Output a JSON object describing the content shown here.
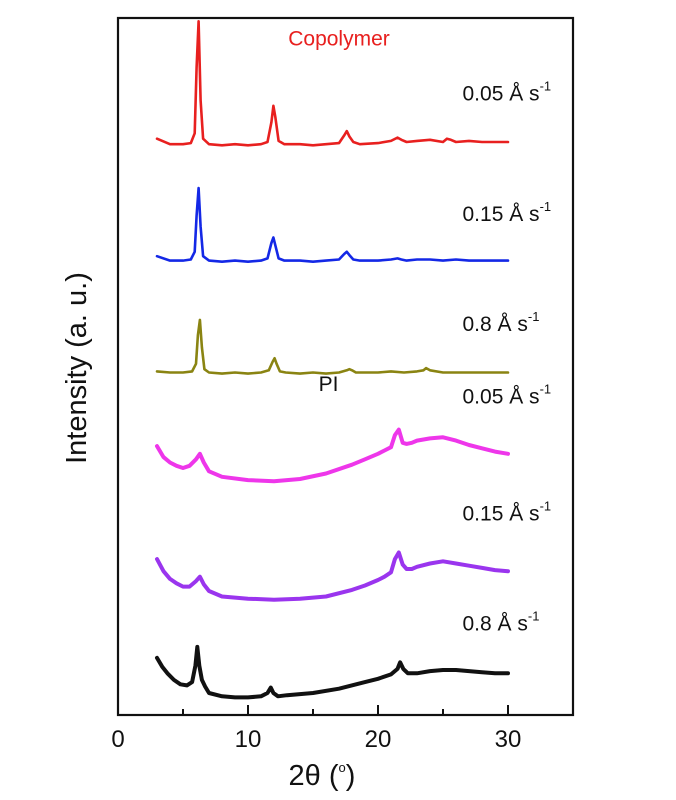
{
  "chart_data": {
    "type": "line",
    "title": "",
    "xlabel": "2θ (",
    "xlabel_sup": "o",
    "xlabel_end": ")",
    "ylabel": "Intensity  (a. u.)",
    "xlim": [
      0,
      35
    ],
    "ylim": [
      0,
      6.35
    ],
    "xticks": [
      0,
      10,
      20,
      30
    ],
    "yticks": [],
    "grid": false,
    "legend": "none",
    "annotations": [
      {
        "text": "Copolymer",
        "x": 17,
        "y": 6.1,
        "color": "#e8201f"
      },
      {
        "text": "PI",
        "x": 16.2,
        "y": 2.95,
        "color": "#111111"
      }
    ],
    "series": [
      {
        "name": "Copolymer 0.05 Å s-1",
        "label": "0.05 Å s",
        "label_sup": "-1",
        "label_x": 26.5,
        "label_y": 5.6,
        "color": "#e8201f",
        "x": [
          3,
          4,
          5,
          5.6,
          5.9,
          6.05,
          6.2,
          6.35,
          6.55,
          7,
          8,
          9,
          10,
          11,
          11.5,
          11.8,
          11.95,
          12.1,
          12.35,
          12.8,
          14,
          15,
          16,
          17,
          17.4,
          17.6,
          17.8,
          18.1,
          18.6,
          20,
          21,
          21.5,
          21.8,
          22.2,
          23,
          24,
          25,
          25.3,
          25.6,
          26,
          27,
          28,
          29,
          30
        ],
        "y": [
          5.25,
          5.2,
          5.2,
          5.21,
          5.3,
          5.9,
          6.32,
          5.6,
          5.25,
          5.2,
          5.19,
          5.2,
          5.19,
          5.2,
          5.22,
          5.4,
          5.55,
          5.45,
          5.23,
          5.2,
          5.2,
          5.19,
          5.2,
          5.21,
          5.28,
          5.32,
          5.27,
          5.22,
          5.2,
          5.21,
          5.23,
          5.26,
          5.24,
          5.22,
          5.23,
          5.24,
          5.22,
          5.25,
          5.24,
          5.22,
          5.23,
          5.22,
          5.22,
          5.22
        ]
      },
      {
        "name": "Copolymer 0.15 Å s-1",
        "label": "0.15 Å s",
        "label_sup": "-1",
        "label_x": 26.5,
        "label_y": 4.5,
        "color": "#1428e6",
        "x": [
          3,
          4,
          5,
          5.6,
          5.9,
          6.05,
          6.2,
          6.35,
          6.55,
          7,
          8,
          9,
          10,
          11,
          11.5,
          11.8,
          11.95,
          12.1,
          12.35,
          12.8,
          14,
          15,
          16,
          17,
          17.4,
          17.6,
          17.8,
          18.1,
          18.6,
          20,
          21,
          21.5,
          21.8,
          22.2,
          23,
          24,
          25,
          26,
          27,
          28,
          29,
          30
        ],
        "y": [
          4.18,
          4.14,
          4.14,
          4.15,
          4.22,
          4.55,
          4.8,
          4.45,
          4.18,
          4.14,
          4.13,
          4.14,
          4.13,
          4.14,
          4.16,
          4.3,
          4.35,
          4.28,
          4.16,
          4.14,
          4.14,
          4.13,
          4.14,
          4.15,
          4.2,
          4.22,
          4.19,
          4.15,
          4.14,
          4.14,
          4.15,
          4.16,
          4.15,
          4.14,
          4.15,
          4.15,
          4.14,
          4.15,
          4.14,
          4.14,
          4.14,
          4.14
        ]
      },
      {
        "name": "Copolymer 0.8 Å s-1",
        "label": "0.8 Å s",
        "label_sup": "-1",
        "label_x": 26.5,
        "label_y": 3.5,
        "color": "#8a8412",
        "x": [
          3,
          4,
          5,
          5.7,
          6.0,
          6.15,
          6.3,
          6.45,
          6.65,
          7,
          8,
          9,
          10,
          11,
          11.6,
          11.9,
          12.05,
          12.2,
          12.45,
          12.9,
          14,
          15,
          16,
          17,
          17.6,
          17.8,
          18.0,
          18.3,
          18.8,
          20,
          21,
          22,
          23,
          23.5,
          23.7,
          24,
          25,
          26,
          27,
          28,
          29,
          30
        ],
        "y": [
          3.13,
          3.12,
          3.12,
          3.13,
          3.2,
          3.46,
          3.6,
          3.35,
          3.15,
          3.12,
          3.11,
          3.12,
          3.11,
          3.12,
          3.14,
          3.22,
          3.25,
          3.2,
          3.13,
          3.12,
          3.11,
          3.12,
          3.11,
          3.12,
          3.14,
          3.15,
          3.14,
          3.12,
          3.12,
          3.12,
          3.13,
          3.12,
          3.13,
          3.14,
          3.16,
          3.14,
          3.12,
          3.12,
          3.12,
          3.12,
          3.12,
          3.12
        ]
      },
      {
        "name": "PI 0.05 Å s-1",
        "label": "0.05 Å s",
        "label_sup": "-1",
        "label_x": 26.5,
        "label_y": 2.84,
        "color": "#ee36ea",
        "x": [
          3,
          3.5,
          4,
          4.5,
          5,
          5.5,
          6,
          6.3,
          6.6,
          7,
          8,
          10,
          12,
          14,
          16,
          18,
          19,
          20,
          20.5,
          21,
          21.3,
          21.6,
          21.9,
          22.2,
          22.6,
          23,
          24,
          25,
          26,
          27,
          28,
          29,
          30
        ],
        "y": [
          2.45,
          2.35,
          2.3,
          2.27,
          2.25,
          2.27,
          2.33,
          2.38,
          2.3,
          2.22,
          2.17,
          2.14,
          2.13,
          2.15,
          2.2,
          2.28,
          2.33,
          2.38,
          2.41,
          2.44,
          2.55,
          2.6,
          2.48,
          2.47,
          2.48,
          2.5,
          2.52,
          2.53,
          2.5,
          2.46,
          2.43,
          2.4,
          2.38
        ]
      },
      {
        "name": "PI 0.15 Å s-1",
        "label": "0.15 Å s",
        "label_sup": "-1",
        "label_x": 26.5,
        "label_y": 1.77,
        "color": "#9a35ee",
        "x": [
          3,
          3.5,
          4,
          4.5,
          5,
          5.5,
          6,
          6.3,
          6.6,
          7,
          8,
          10,
          12,
          14,
          16,
          18,
          19,
          20,
          20.5,
          21,
          21.3,
          21.6,
          21.9,
          22.2,
          22.6,
          23,
          24,
          25,
          26,
          27,
          28,
          29,
          30
        ],
        "y": [
          1.42,
          1.31,
          1.24,
          1.2,
          1.17,
          1.17,
          1.22,
          1.26,
          1.19,
          1.13,
          1.08,
          1.06,
          1.05,
          1.06,
          1.08,
          1.14,
          1.18,
          1.23,
          1.26,
          1.3,
          1.42,
          1.48,
          1.37,
          1.33,
          1.33,
          1.35,
          1.38,
          1.4,
          1.38,
          1.36,
          1.34,
          1.32,
          1.31
        ]
      },
      {
        "name": "PI 0.8 Å s-1",
        "label": "0.8 Å s",
        "label_sup": "-1",
        "label_x": 26.5,
        "label_y": 0.77,
        "color": "#111111",
        "x": [
          3,
          3.4,
          3.8,
          4.3,
          4.8,
          5.3,
          5.7,
          5.95,
          6.1,
          6.25,
          6.45,
          6.7,
          7,
          8,
          9,
          10,
          11,
          11.5,
          11.75,
          11.95,
          12.3,
          13,
          15,
          17,
          19,
          20,
          21,
          21.5,
          21.7,
          21.95,
          22.3,
          23,
          24,
          25,
          26,
          27,
          28,
          29,
          30
        ],
        "y": [
          0.52,
          0.44,
          0.38,
          0.32,
          0.28,
          0.27,
          0.3,
          0.45,
          0.62,
          0.45,
          0.32,
          0.26,
          0.2,
          0.17,
          0.16,
          0.16,
          0.17,
          0.2,
          0.25,
          0.2,
          0.17,
          0.18,
          0.2,
          0.24,
          0.3,
          0.33,
          0.37,
          0.42,
          0.48,
          0.42,
          0.38,
          0.38,
          0.4,
          0.41,
          0.41,
          0.4,
          0.39,
          0.38,
          0.38
        ]
      }
    ]
  }
}
